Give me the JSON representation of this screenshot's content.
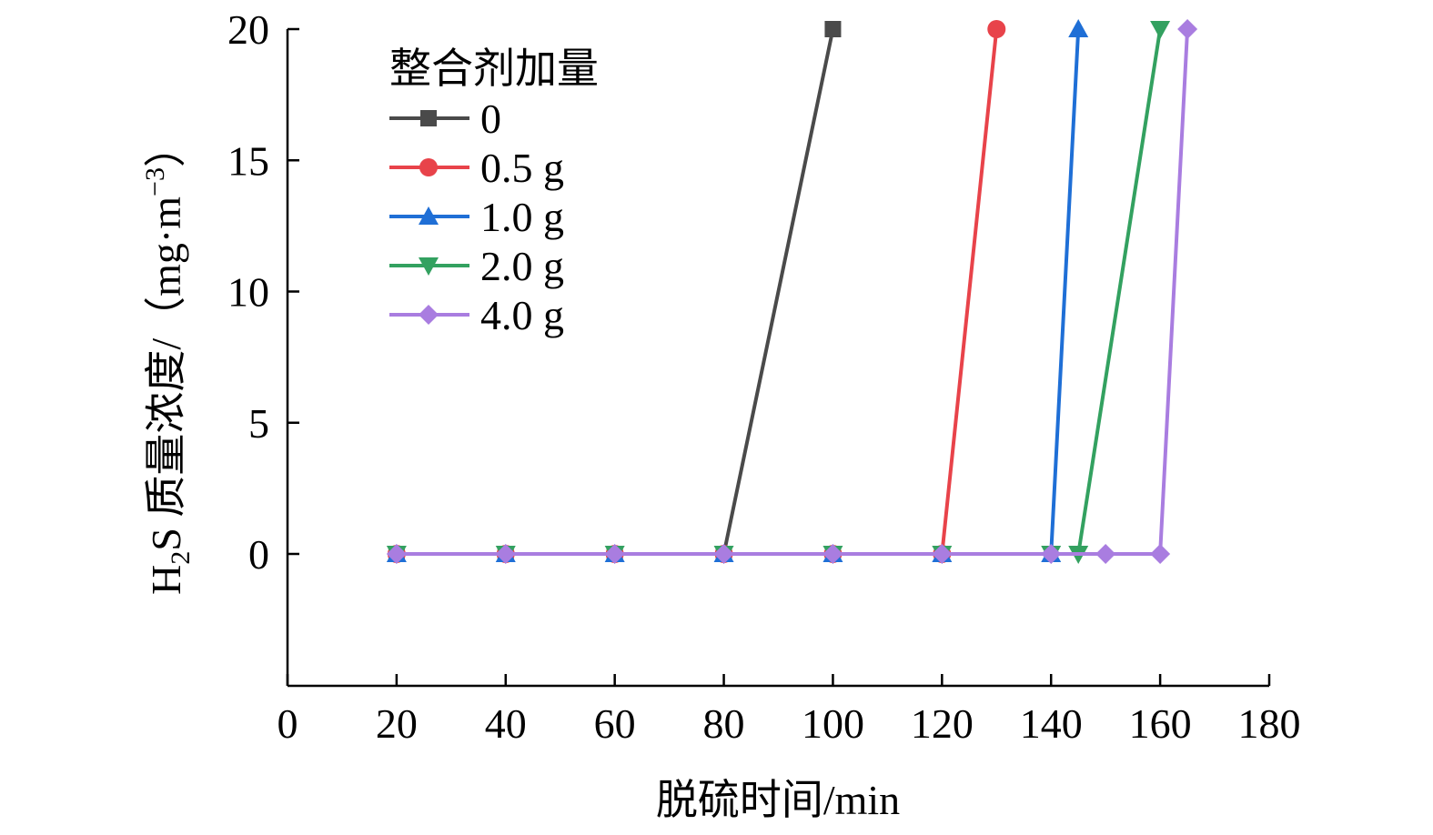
{
  "chart_data": {
    "type": "line",
    "title": "",
    "xlabel": "脱硫时间/min",
    "ylabel_parts": {
      "h": "H",
      "sub": "2",
      "rest": "S 质量浓度/（mg·m",
      "sup": "−3",
      "close": "）"
    },
    "xlim": [
      0,
      180
    ],
    "ylim": [
      -5,
      20
    ],
    "xticks": [
      "0",
      "20",
      "40",
      "60",
      "80",
      "100",
      "120",
      "140",
      "160",
      "180"
    ],
    "yticks": [
      "0",
      "5",
      "10",
      "15",
      "20"
    ],
    "xtick_values": [
      0,
      20,
      40,
      60,
      80,
      100,
      120,
      140,
      160,
      180
    ],
    "ytick_values": [
      0,
      5,
      10,
      15,
      20
    ],
    "grid": false,
    "legend": {
      "title": "整合剂加量",
      "position": "top-left"
    },
    "series": [
      {
        "name": "0",
        "color": "#4a4a4a",
        "marker": "square",
        "x": [
          20,
          40,
          60,
          80,
          100
        ],
        "y": [
          0,
          0,
          0,
          0,
          20
        ]
      },
      {
        "name": "0.5 g",
        "color": "#e8434a",
        "marker": "circle",
        "x": [
          20,
          40,
          60,
          80,
          100,
          120,
          130
        ],
        "y": [
          0,
          0,
          0,
          0,
          0,
          0,
          20
        ]
      },
      {
        "name": "1.0 g",
        "color": "#1f6fd6",
        "marker": "triangle-up",
        "x": [
          20,
          40,
          60,
          80,
          100,
          120,
          140,
          145
        ],
        "y": [
          0,
          0,
          0,
          0,
          0,
          0,
          0,
          20
        ]
      },
      {
        "name": "2.0 g",
        "color": "#33a160",
        "marker": "triangle-down",
        "x": [
          20,
          40,
          60,
          80,
          100,
          120,
          140,
          145,
          160
        ],
        "y": [
          0,
          0,
          0,
          0,
          0,
          0,
          0,
          0,
          20
        ]
      },
      {
        "name": "4.0 g",
        "color": "#a97de0",
        "marker": "diamond",
        "x": [
          20,
          40,
          60,
          80,
          100,
          120,
          140,
          150,
          160,
          165
        ],
        "y": [
          0,
          0,
          0,
          0,
          0,
          0,
          0,
          0,
          0,
          20
        ]
      }
    ]
  }
}
